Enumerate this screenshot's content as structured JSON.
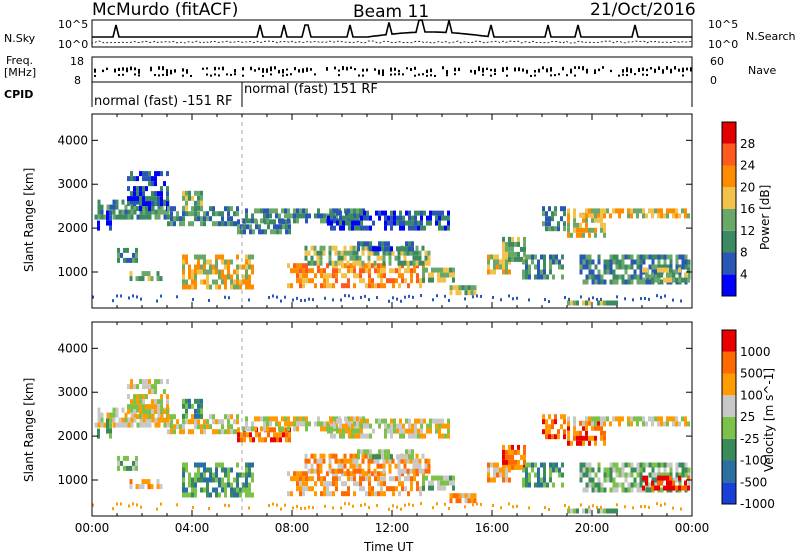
{
  "header": {
    "station": "McMurdo (fitACF)",
    "beam": "Beam 11",
    "date": "21/Oct/2016"
  },
  "status_panel": {
    "left_labels": [
      "N.Sky",
      "Freq.",
      "[MHz]",
      "CPID"
    ],
    "left_ticks_nsky": [
      "10^5",
      "10^0"
    ],
    "left_ticks_freq": [
      "18",
      "8"
    ],
    "right_labels": [
      "N.Search",
      "Nave"
    ],
    "right_ticks_nsearch": [
      "10^5",
      "10^0"
    ],
    "right_ticks_nave": [
      "60",
      "0"
    ],
    "cpid_segments": [
      "normal (fast) -151 RF",
      "normal (fast) 151 RF"
    ]
  },
  "colors": {
    "power_scale": [
      "#0000ff",
      "#2a57b6",
      "#3c8a62",
      "#6aa86a",
      "#f2c24a",
      "#ff8c00",
      "#ff5a1e",
      "#e00000"
    ],
    "velocity_scale": [
      "#1a3fd6",
      "#2a6fa0",
      "#3b8a5a",
      "#7cc24a",
      "#c8c8c8",
      "#ff9a00",
      "#ff6a00",
      "#e80000"
    ]
  },
  "chart_data": [
    {
      "type": "heatmap",
      "panel": "power",
      "xlabel": "Time UT",
      "ylabel": "Slant Range [km]",
      "xticks": [
        "00:00",
        "04:00",
        "08:00",
        "12:00",
        "16:00",
        "20:00",
        "00:00"
      ],
      "yticks": [
        "1000",
        "2000",
        "3000",
        "4000"
      ],
      "ylim": [
        180,
        4600
      ],
      "xlim_hours": [
        0,
        24
      ],
      "colorbar_label": "Power [dB]",
      "colorbar_ticks": [
        "4",
        "8",
        "12",
        "16",
        "20",
        "24",
        "28"
      ],
      "colorbar_range": [
        0,
        32
      ]
    },
    {
      "type": "heatmap",
      "panel": "velocity",
      "xlabel": "Time UT",
      "ylabel": "Slant Range [km]",
      "xticks": [
        "00:00",
        "04:00",
        "08:00",
        "12:00",
        "16:00",
        "20:00",
        "00:00"
      ],
      "yticks": [
        "1000",
        "2000",
        "3000",
        "4000"
      ],
      "ylim": [
        180,
        4600
      ],
      "xlim_hours": [
        0,
        24
      ],
      "colorbar_label": "Velocity [m s^-1]",
      "colorbar_ticks": [
        "1000",
        "500",
        "100",
        "25",
        "-25",
        "-100",
        "-500",
        "-1000"
      ]
    }
  ]
}
